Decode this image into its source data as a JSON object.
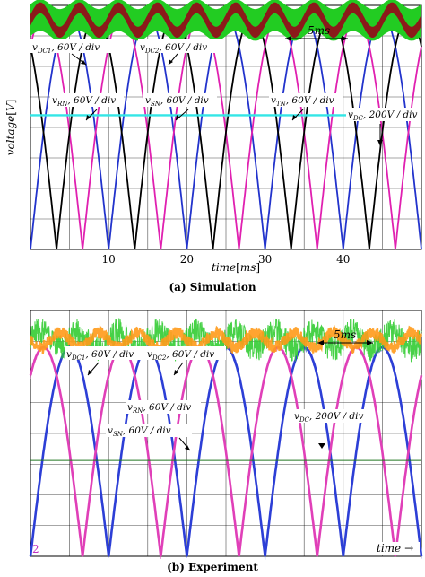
{
  "chart_data": [
    {
      "type": "line",
      "caption": "(a) Simulation",
      "ylabel_parts": [
        "voltage",
        "[",
        "V",
        "]"
      ],
      "xlabel_parts": [
        "time",
        "[",
        "ms",
        "]"
      ],
      "xlim": [
        0,
        50
      ],
      "xticks": [
        10,
        20,
        30,
        40
      ],
      "scale_label": "5ms",
      "grid": true,
      "annotations": [
        {
          "var": "v",
          "sub": "DC1",
          "rest": ", 60V / div"
        },
        {
          "var": "v",
          "sub": "DC2",
          "rest": ", 60V / div"
        },
        {
          "var": "v",
          "sub": "RN",
          "rest": ", 60V / div"
        },
        {
          "var": "v",
          "sub": "SN",
          "rest": ", 60V / div"
        },
        {
          "var": "v",
          "sub": "TN",
          "rest": ", 60V / div"
        },
        {
          "var": "v",
          "sub": "DC",
          "rest": ", 200V / div"
        }
      ],
      "series": [
        {
          "color": "#2233cc",
          "kind": "rectified_sine",
          "amplitude": 0.96,
          "period_ms": 20,
          "phase_deg": 0
        },
        {
          "color": "#e020b0",
          "kind": "rectified_sine",
          "amplitude": 0.96,
          "period_ms": 20,
          "phase_deg": -120
        },
        {
          "color": "#000000",
          "kind": "rectified_sine",
          "amplitude": 0.96,
          "period_ms": 20,
          "phase_deg": 120
        },
        {
          "color": "#22cc22",
          "kind": "ripple_band",
          "level": 0.94,
          "band_width": 0.13,
          "ripple_amplitude": 0.02,
          "period_ms": 5
        },
        {
          "color": "#8b1a1a",
          "kind": "ripple_band",
          "level": 0.94,
          "band_width": 0.045,
          "ripple_amplitude": 0.05,
          "period_ms": 5
        },
        {
          "color": "#33e6e6",
          "kind": "constant",
          "level": 0.55
        }
      ]
    },
    {
      "type": "line",
      "caption": "(b) Experiment",
      "xlabel_parts": [
        "time",
        "→"
      ],
      "scale_label": "5ms",
      "channel_marker": "2",
      "grid": true,
      "annotations": [
        {
          "var": "v",
          "sub": "DC1",
          "rest": ", 60V / div"
        },
        {
          "var": "v",
          "sub": "DC2",
          "rest": ", 60V / div"
        },
        {
          "var": "v",
          "sub": "RN",
          "rest": ", 60V / div"
        },
        {
          "var": "v",
          "sub": "SN",
          "rest": ", 60V / div"
        },
        {
          "var": "v",
          "sub": "DC",
          "rest": ", 200V / div"
        }
      ],
      "series": [
        {
          "color": "#2d3fd6",
          "kind": "rectified_sine",
          "amplitude": 0.85,
          "period_ms": 20,
          "phase_deg": 0
        },
        {
          "color": "#e040b8",
          "kind": "rectified_sine",
          "amplitude": 0.85,
          "period_ms": 20,
          "phase_deg": -120
        },
        {
          "color": "#33cc33",
          "kind": "noisy_ripple",
          "level": 0.88,
          "ripple_amplitude": 0.035,
          "period_ms": 5
        },
        {
          "color": "#ff9a1a",
          "kind": "noisy_ripple",
          "level": 0.88,
          "ripple_amplitude": 0.03,
          "period_ms": 5
        },
        {
          "color": "#227722",
          "kind": "constant",
          "level": 0.39
        }
      ]
    }
  ]
}
